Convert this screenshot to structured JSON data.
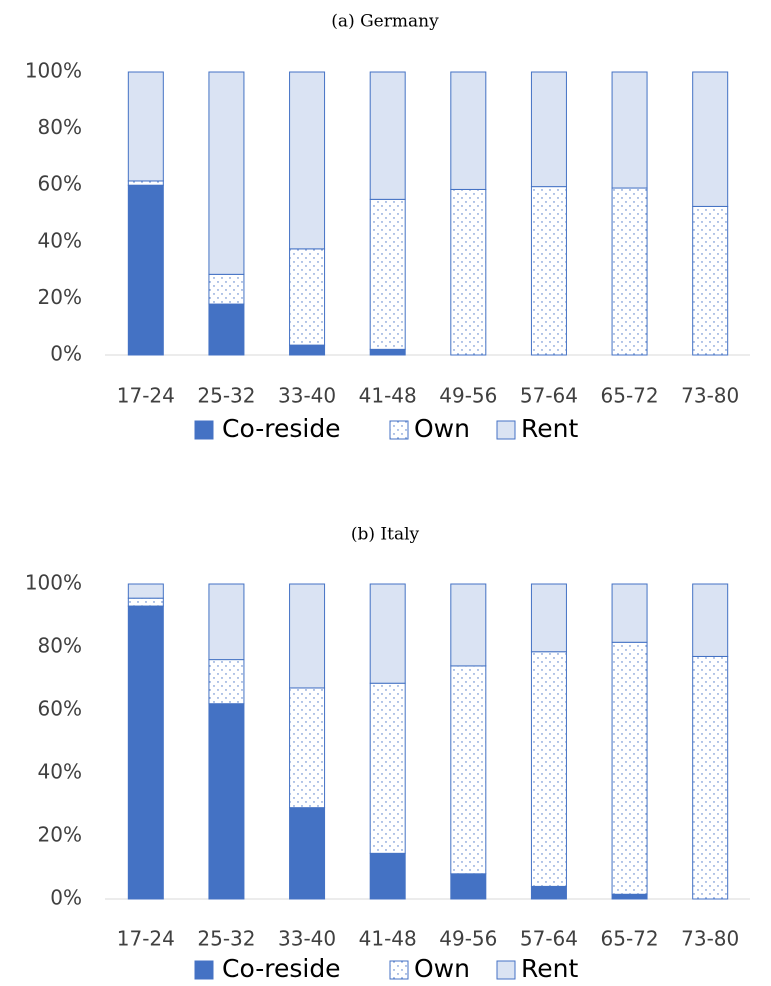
{
  "chart_data": [
    {
      "type": "bar",
      "stacked": true,
      "title": "(a) Germany",
      "categories": [
        "17-24",
        "25-32",
        "33-40",
        "41-48",
        "49-56",
        "57-64",
        "65-72",
        "73-80"
      ],
      "series": [
        {
          "name": "Co-reside",
          "color": "#4472c4",
          "values": [
            60,
            18,
            3.5,
            2,
            0,
            0,
            0,
            0
          ]
        },
        {
          "name": "Own",
          "color": "#ffffff",
          "hatch": "dots",
          "values": [
            1.5,
            10.5,
            34,
            53,
            58.5,
            59.5,
            59,
            52.5
          ]
        },
        {
          "name": "Rent",
          "color": "#dae3f3",
          "values": [
            38.5,
            71.5,
            62.5,
            45,
            41.5,
            40.5,
            41,
            47.5
          ]
        }
      ],
      "edgecolor": "#4472c4",
      "ylim": [
        0,
        100
      ],
      "yticks": [
        {
          "value": 0,
          "label": "0%"
        },
        {
          "value": 20,
          "label": "20%"
        },
        {
          "value": 40,
          "label": "40%"
        },
        {
          "value": 60,
          "label": "60%"
        },
        {
          "value": 80,
          "label": "80%"
        },
        {
          "value": 100,
          "label": "100%"
        }
      ],
      "grid": false,
      "legend": "bottom"
    },
    {
      "type": "bar",
      "stacked": true,
      "title": "(b) Italy",
      "categories": [
        "17-24",
        "25-32",
        "33-40",
        "41-48",
        "49-56",
        "57-64",
        "65-72",
        "73-80"
      ],
      "series": [
        {
          "name": "Co-reside",
          "color": "#4472c4",
          "values": [
            93,
            62,
            29,
            14.5,
            8,
            4,
            1.5,
            0
          ]
        },
        {
          "name": "Own",
          "color": "#ffffff",
          "hatch": "dots",
          "values": [
            2.5,
            14,
            38,
            54,
            66,
            74.5,
            80,
            77
          ]
        },
        {
          "name": "Rent",
          "color": "#dae3f3",
          "values": [
            4.5,
            24,
            33,
            31.5,
            26,
            21.5,
            18.5,
            23
          ]
        }
      ],
      "edgecolor": "#4472c4",
      "ylim": [
        0,
        100
      ],
      "yticks": [
        {
          "value": 0,
          "label": "0%"
        },
        {
          "value": 20,
          "label": "20%"
        },
        {
          "value": 40,
          "label": "40%"
        },
        {
          "value": 60,
          "label": "60%"
        },
        {
          "value": 80,
          "label": "80%"
        },
        {
          "value": 100,
          "label": "100%"
        }
      ],
      "grid": false,
      "legend": "bottom"
    }
  ]
}
